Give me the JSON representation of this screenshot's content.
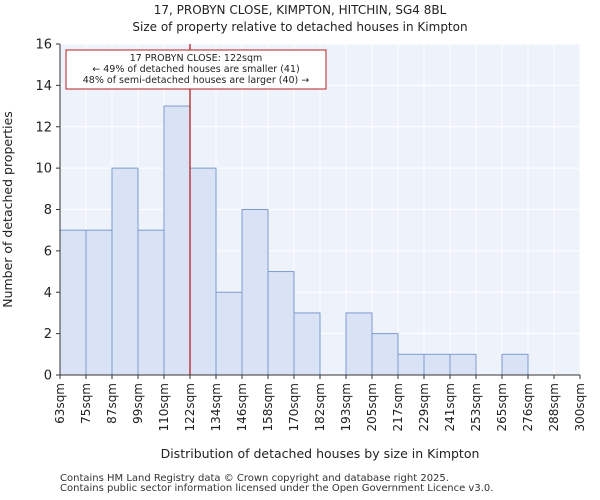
{
  "chart_data": {
    "type": "bar",
    "title": "17, PROBYN CLOSE, KIMPTON, HITCHIN, SG4 8BL",
    "subtitle": "Size of property relative to detached houses in Kimpton",
    "xlabel": "Distribution of detached houses by size in Kimpton",
    "ylabel": "Number of detached properties",
    "ylim": [
      0,
      16
    ],
    "yticks": [
      0,
      2,
      4,
      6,
      8,
      10,
      12,
      14,
      16
    ],
    "bin_edges": [
      "63sqm",
      "75sqm",
      "87sqm",
      "99sqm",
      "110sqm",
      "122sqm",
      "134sqm",
      "146sqm",
      "158sqm",
      "170sqm",
      "182sqm",
      "193sqm",
      "205sqm",
      "217sqm",
      "229sqm",
      "241sqm",
      "253sqm",
      "265sqm",
      "276sqm",
      "288sqm",
      "300sqm"
    ],
    "values": [
      7,
      7,
      10,
      7,
      13,
      10,
      4,
      8,
      5,
      3,
      0,
      3,
      2,
      1,
      1,
      1,
      0,
      1,
      0,
      0
    ],
    "property_marker_bin_edge_index": 5,
    "annotation": {
      "line1": "17 PROBYN CLOSE: 122sqm",
      "line2": "← 49% of detached houses are smaller (41)",
      "line3": "48% of semi-detached houses are larger (40) →"
    },
    "colors": {
      "bar_fill": "#dae3f5",
      "bar_stroke": "#7e9ad0",
      "marker": "#b22222",
      "plot_bg": "#eef2fb",
      "grid": "#ffffff"
    }
  },
  "footer": {
    "line1": "Contains HM Land Registry data © Crown copyright and database right 2025.",
    "line2": "Contains public sector information licensed under the Open Government Licence v3.0."
  }
}
